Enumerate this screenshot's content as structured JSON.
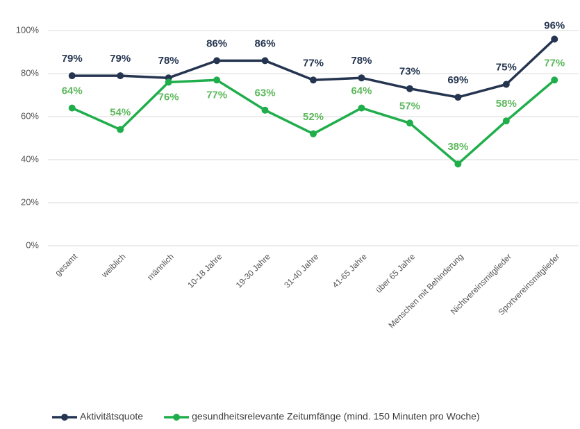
{
  "chart_data": {
    "type": "line",
    "categories": [
      "gesamt",
      "weiblich",
      "männlich",
      "10-18 Jahre",
      "19-30 Jahre",
      "31-40 Jahre",
      "41-65 Jahre",
      "über 65 Jahre",
      "Menschen mit Behinderung",
      "Nichtvereinsmitglieder",
      "Sportvereinsmitglieder"
    ],
    "series": [
      {
        "name": "Aktivitätsquote",
        "color": "#253550",
        "label_color": "#253550",
        "values": [
          79,
          79,
          78,
          86,
          86,
          77,
          78,
          73,
          69,
          75,
          96
        ],
        "value_labels": [
          "79%",
          "79%",
          "78%",
          "86%",
          "86%",
          "77%",
          "78%",
          "73%",
          "69%",
          "75%",
          "96%"
        ]
      },
      {
        "name": "gesundheitsrelevante Zeitumfänge (mind. 150 Minuten pro Woche)",
        "color": "#1fae4b",
        "label_color": "#5cb85c",
        "values": [
          64,
          54,
          76,
          77,
          63,
          52,
          64,
          57,
          38,
          58,
          77
        ],
        "value_labels": [
          "64%",
          "54%",
          "76%",
          "77%",
          "63%",
          "52%",
          "64%",
          "57%",
          "38%",
          "58%",
          "77%"
        ]
      }
    ],
    "ylim": [
      0,
      100
    ],
    "yticks": [
      {
        "value": 0,
        "label": "0%"
      },
      {
        "value": 20,
        "label": "20%"
      },
      {
        "value": 40,
        "label": "40%"
      },
      {
        "value": 60,
        "label": "60%"
      },
      {
        "value": 80,
        "label": "80%"
      },
      {
        "value": 100,
        "label": "100%"
      }
    ],
    "grid": true,
    "legend": "bottom"
  }
}
